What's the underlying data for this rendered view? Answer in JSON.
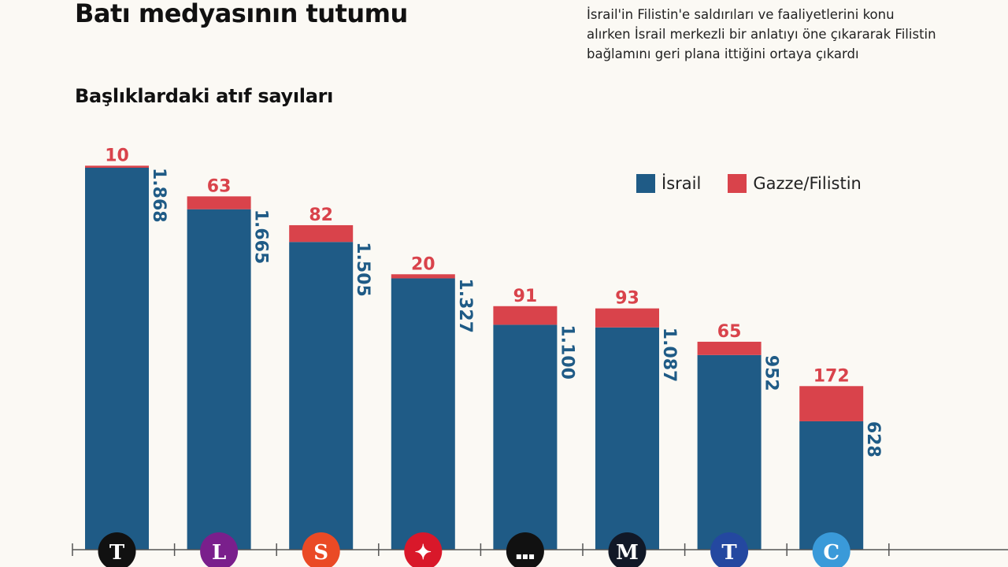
{
  "title": "Batı medyasının tutumu",
  "note": "İsrail'in Filistin'e saldırıları ve faaliyetlerini konu alırken İsrail merkezli bir anlatıyı öne çıkararak Filistin bağlamını geri plana ittiğini ortaya çıkardı",
  "chart_data": {
    "type": "bar",
    "stacked": true,
    "title": "Başlıklardaki atıf sayıları",
    "legend_position": "top-right",
    "grid": false,
    "series": [
      {
        "name": "İsrail",
        "color": "#1f5b86",
        "values": [
          1868,
          1665,
          1505,
          1327,
          1100,
          1087,
          952,
          628
        ],
        "labels": [
          "1.868",
          "1.665",
          "1.505",
          "1.327",
          "1.100",
          "1.087",
          "952",
          "628"
        ]
      },
      {
        "name": "Gazze/Filistin",
        "color": "#d9434b",
        "values": [
          10,
          63,
          82,
          20,
          91,
          93,
          65,
          172
        ],
        "labels": [
          "10",
          "63",
          "82",
          "20",
          "91",
          "93",
          "65",
          "172"
        ]
      }
    ],
    "category_logos": [
      {
        "icon": "newspaper-logo-gothic-t",
        "glyph": "T",
        "color": "#111111"
      },
      {
        "icon": "newspaper-logo-l",
        "glyph": "L",
        "color": "#7a1f8c"
      },
      {
        "icon": "newspaper-logo-s",
        "glyph": "S",
        "color": "#ea4a25"
      },
      {
        "icon": "maple-leaf-logo",
        "glyph": "✦",
        "color": "#d9182a"
      },
      {
        "icon": "bbc-logo",
        "glyph": "▪▪▪",
        "color": "#111111"
      },
      {
        "icon": "newspaper-logo-m",
        "glyph": "M",
        "color": "#111827"
      },
      {
        "icon": "newspaper-logo-blue-t",
        "glyph": "T",
        "color": "#2448a0"
      },
      {
        "icon": "newspaper-logo-c",
        "glyph": "C",
        "color": "#3a9ad9"
      }
    ],
    "ylim": [
      0,
      1900
    ]
  }
}
